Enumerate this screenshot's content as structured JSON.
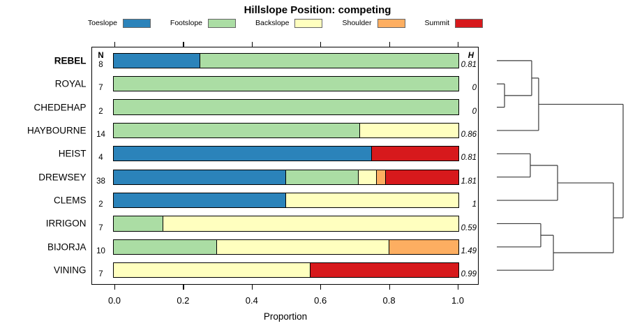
{
  "title": "Hillslope Position: competing",
  "xlabel": "Proportion",
  "columns": {
    "n_header": "N",
    "h_header": "H"
  },
  "x_ticks": [
    "0.0",
    "0.2",
    "0.4",
    "0.6",
    "0.8",
    "1.0"
  ],
  "legend": [
    {
      "label": "Toeslope",
      "color": "#2B83BA"
    },
    {
      "label": "Footslope",
      "color": "#ABDDA4"
    },
    {
      "label": "Backslope",
      "color": "#FFFFBF"
    },
    {
      "label": "Shoulder",
      "color": "#FDAE61"
    },
    {
      "label": "Summit",
      "color": "#D7191C"
    }
  ],
  "chart_data": {
    "type": "bar",
    "orientation": "horizontal-stacked",
    "title": "Hillslope Position: competing",
    "xlabel": "Proportion",
    "xlim": [
      0,
      1
    ],
    "x_ticks": [
      0.0,
      0.2,
      0.4,
      0.6,
      0.8,
      1.0
    ],
    "categories": [
      "Toeslope",
      "Footslope",
      "Backslope",
      "Shoulder",
      "Summit"
    ],
    "category_colors": {
      "Toeslope": "#2B83BA",
      "Footslope": "#ABDDA4",
      "Backslope": "#FFFFBF",
      "Shoulder": "#FDAE61",
      "Summit": "#D7191C"
    },
    "rows": [
      {
        "name": "REBEL",
        "bold": true,
        "n": 8,
        "h": "0.81",
        "segments": [
          {
            "cat": "Toeslope",
            "value": 0.25
          },
          {
            "cat": "Footslope",
            "value": 0.75
          }
        ]
      },
      {
        "name": "ROYAL",
        "bold": false,
        "n": 7,
        "h": "0",
        "segments": [
          {
            "cat": "Footslope",
            "value": 1.0
          }
        ]
      },
      {
        "name": "CHEDEHAP",
        "bold": false,
        "n": 2,
        "h": "0",
        "segments": [
          {
            "cat": "Footslope",
            "value": 1.0
          }
        ]
      },
      {
        "name": "HAYBOURNE",
        "bold": false,
        "n": 14,
        "h": "0.86",
        "segments": [
          {
            "cat": "Footslope",
            "value": 0.714
          },
          {
            "cat": "Backslope",
            "value": 0.286
          }
        ]
      },
      {
        "name": "HEIST",
        "bold": false,
        "n": 4,
        "h": "0.81",
        "segments": [
          {
            "cat": "Toeslope",
            "value": 0.75
          },
          {
            "cat": "Summit",
            "value": 0.25
          }
        ]
      },
      {
        "name": "DREWSEY",
        "bold": false,
        "n": 38,
        "h": "1.81",
        "segments": [
          {
            "cat": "Toeslope",
            "value": 0.5
          },
          {
            "cat": "Footslope",
            "value": 0.211
          },
          {
            "cat": "Backslope",
            "value": 0.053
          },
          {
            "cat": "Shoulder",
            "value": 0.026
          },
          {
            "cat": "Summit",
            "value": 0.21
          }
        ]
      },
      {
        "name": "CLEMS",
        "bold": false,
        "n": 2,
        "h": "1",
        "segments": [
          {
            "cat": "Toeslope",
            "value": 0.5
          },
          {
            "cat": "Backslope",
            "value": 0.5
          }
        ]
      },
      {
        "name": "IRRIGON",
        "bold": false,
        "n": 7,
        "h": "0.59",
        "segments": [
          {
            "cat": "Footslope",
            "value": 0.143
          },
          {
            "cat": "Backslope",
            "value": 0.857
          }
        ]
      },
      {
        "name": "BIJORJA",
        "bold": false,
        "n": 10,
        "h": "1.49",
        "segments": [
          {
            "cat": "Footslope",
            "value": 0.3
          },
          {
            "cat": "Backslope",
            "value": 0.5
          },
          {
            "cat": "Shoulder",
            "value": 0.2
          }
        ]
      },
      {
        "name": "VINING",
        "bold": false,
        "n": 7,
        "h": "0.99",
        "segments": [
          {
            "cat": "Backslope",
            "value": 0.571
          },
          {
            "cat": "Summit",
            "value": 0.429
          }
        ]
      }
    ]
  },
  "dendrogram": {
    "leaves": [
      "REBEL",
      "ROYAL",
      "CHEDEHAP",
      "HAYBOURNE",
      "HEIST",
      "DREWSEY",
      "CLEMS",
      "IRRIGON",
      "BIJORJA",
      "VINING"
    ],
    "merges": [
      {
        "id": "m1",
        "children": [
          "ROYAL",
          "CHEDEHAP"
        ],
        "height": 0.061
      },
      {
        "id": "m2",
        "children": [
          "REBEL",
          "m1"
        ],
        "height": 0.276
      },
      {
        "id": "m3",
        "children": [
          "m2",
          "HAYBOURNE"
        ],
        "height": 0.331
      },
      {
        "id": "m4",
        "children": [
          "HEIST",
          "DREWSEY"
        ],
        "height": 0.265
      },
      {
        "id": "m5",
        "children": [
          "m4",
          "CLEMS"
        ],
        "height": 0.481
      },
      {
        "id": "m6",
        "children": [
          "IRRIGON",
          "BIJORJA"
        ],
        "height": 0.348
      },
      {
        "id": "m7",
        "children": [
          "m6",
          "VINING"
        ],
        "height": 0.448
      },
      {
        "id": "m8",
        "children": [
          "m5",
          "m7"
        ],
        "height": 0.923
      },
      {
        "id": "m9",
        "children": [
          "m3",
          "m8"
        ],
        "height": 1.0
      }
    ]
  }
}
